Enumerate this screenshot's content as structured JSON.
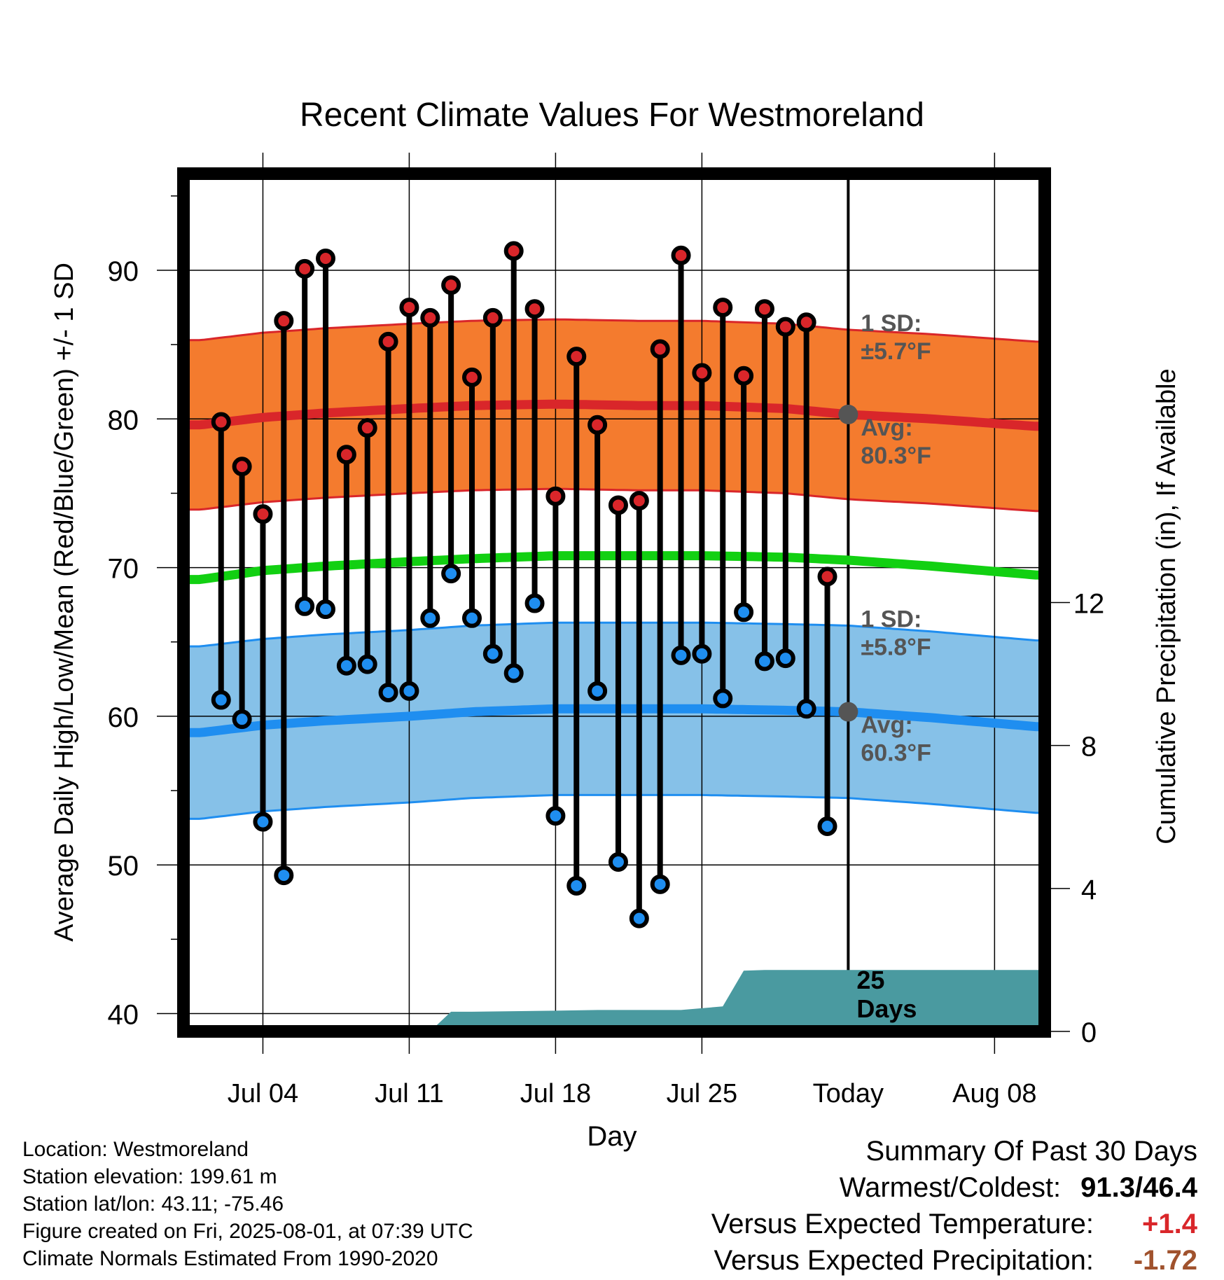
{
  "chart_data": {
    "type": "line",
    "title": "Recent Climate Values For Westmoreland",
    "xlabel": "Day",
    "ylabel": "Average Daily High/Low/Mean (Red/Blue/Green) +/- 1 SD",
    "ylabel_right": "Cumulative Precipitation (in), If Available",
    "x_tick_labels": [
      "Jul 04",
      "Jul 11",
      "Jul 18",
      "Jul 25",
      "Today",
      "Aug 08"
    ],
    "x_tick_days": [
      4,
      11,
      18,
      25,
      32,
      39
    ],
    "xlim": [
      0.2,
      41.4
    ],
    "ylim": [
      38.8,
      96.5
    ],
    "y_ticks": [
      40,
      50,
      60,
      70,
      80,
      90
    ],
    "y2_ticks": [
      0,
      4,
      8,
      12
    ],
    "y2lim": [
      0,
      24
    ],
    "grid": true,
    "today_day": 32,
    "normals": {
      "days": [
        1,
        4,
        7,
        11,
        14,
        18,
        22,
        25,
        29,
        32,
        36,
        41
      ],
      "high_mean": [
        79.6,
        80.1,
        80.4,
        80.7,
        80.9,
        81.0,
        80.9,
        80.9,
        80.7,
        80.3,
        80.0,
        79.5
      ],
      "high_sd": 5.7,
      "low_mean": [
        58.9,
        59.4,
        59.7,
        60.0,
        60.3,
        60.5,
        60.5,
        60.5,
        60.4,
        60.3,
        59.9,
        59.3
      ],
      "low_sd": 5.8,
      "mean_mean": [
        69.2,
        69.8,
        70.1,
        70.4,
        70.6,
        70.8,
        70.8,
        70.8,
        70.7,
        70.5,
        70.1,
        69.5
      ]
    },
    "annotations": {
      "high_sd_label": "1 SD:",
      "high_sd_value": "±5.7°F",
      "high_avg_label": "Avg:",
      "high_avg_value": "80.3°F",
      "low_sd_label": "1 SD:",
      "low_sd_value": "±5.8°F",
      "low_avg_label": "Avg:",
      "low_avg_value": "60.3°F",
      "precip_days_num": "25",
      "precip_days_word": "Days"
    },
    "daily": {
      "days": [
        2,
        3,
        4,
        5,
        6,
        7,
        8,
        9,
        10,
        11,
        12,
        13,
        14,
        15,
        16,
        17,
        18,
        19,
        20,
        21,
        22,
        23,
        24,
        25,
        26,
        27,
        28,
        29,
        30,
        31
      ],
      "highs": [
        79.8,
        76.8,
        73.6,
        86.6,
        90.1,
        90.8,
        77.6,
        79.4,
        85.2,
        87.5,
        86.8,
        89.0,
        82.8,
        86.8,
        91.3,
        87.4,
        74.8,
        84.2,
        79.6,
        74.2,
        74.5,
        84.7,
        91.0,
        83.1,
        87.5,
        82.9,
        87.4,
        86.2,
        86.5,
        69.4
      ],
      "lows": [
        61.1,
        59.8,
        52.9,
        49.3,
        67.4,
        67.2,
        63.4,
        63.5,
        61.6,
        61.7,
        66.6,
        69.6,
        66.6,
        64.2,
        62.9,
        67.6,
        53.3,
        48.6,
        61.7,
        50.2,
        46.4,
        48.7,
        64.1,
        64.2,
        61.2,
        67.0,
        63.7,
        63.9,
        60.5,
        52.6
      ]
    },
    "precip": {
      "days": [
        0.2,
        10,
        12,
        13,
        14,
        18,
        20,
        22,
        24,
        26,
        27,
        28,
        41.4
      ],
      "cumul": [
        0,
        0,
        0,
        0.55,
        0.55,
        0.58,
        0.6,
        0.6,
        0.6,
        0.7,
        1.7,
        1.72,
        1.72
      ]
    },
    "colors": {
      "high_band": "#f47b2e",
      "high_line": "#d9262a",
      "low_band": "#86c1e8",
      "low_line": "#1f8ef0",
      "mean_line": "#12d012",
      "precip": "#4a9aa0",
      "high_marker": "#d9262a",
      "low_marker": "#1f8ef0",
      "today_marker": "#555555",
      "annotation": "#555555"
    }
  },
  "info": {
    "location": "Location: Westmoreland",
    "elevation": "Station elevation: 199.61 m",
    "latlon": "Station lat/lon: 43.11; -75.46",
    "created": "Figure created on Fri, 2025-08-01, at 07:39 UTC",
    "normals": "Climate Normals Estimated From 1990-2020"
  },
  "summary": {
    "title": "Summary Of Past 30 Days",
    "warm_cold_label": "Warmest/Coldest:",
    "warm_cold_value": "91.3/46.4",
    "temp_label": "Versus Expected Temperature:",
    "temp_value": "+1.4",
    "temp_color": "#d9262a",
    "precip_label": "Versus Expected Precipitation:",
    "precip_value": "-1.72",
    "precip_color": "#a0522d"
  }
}
